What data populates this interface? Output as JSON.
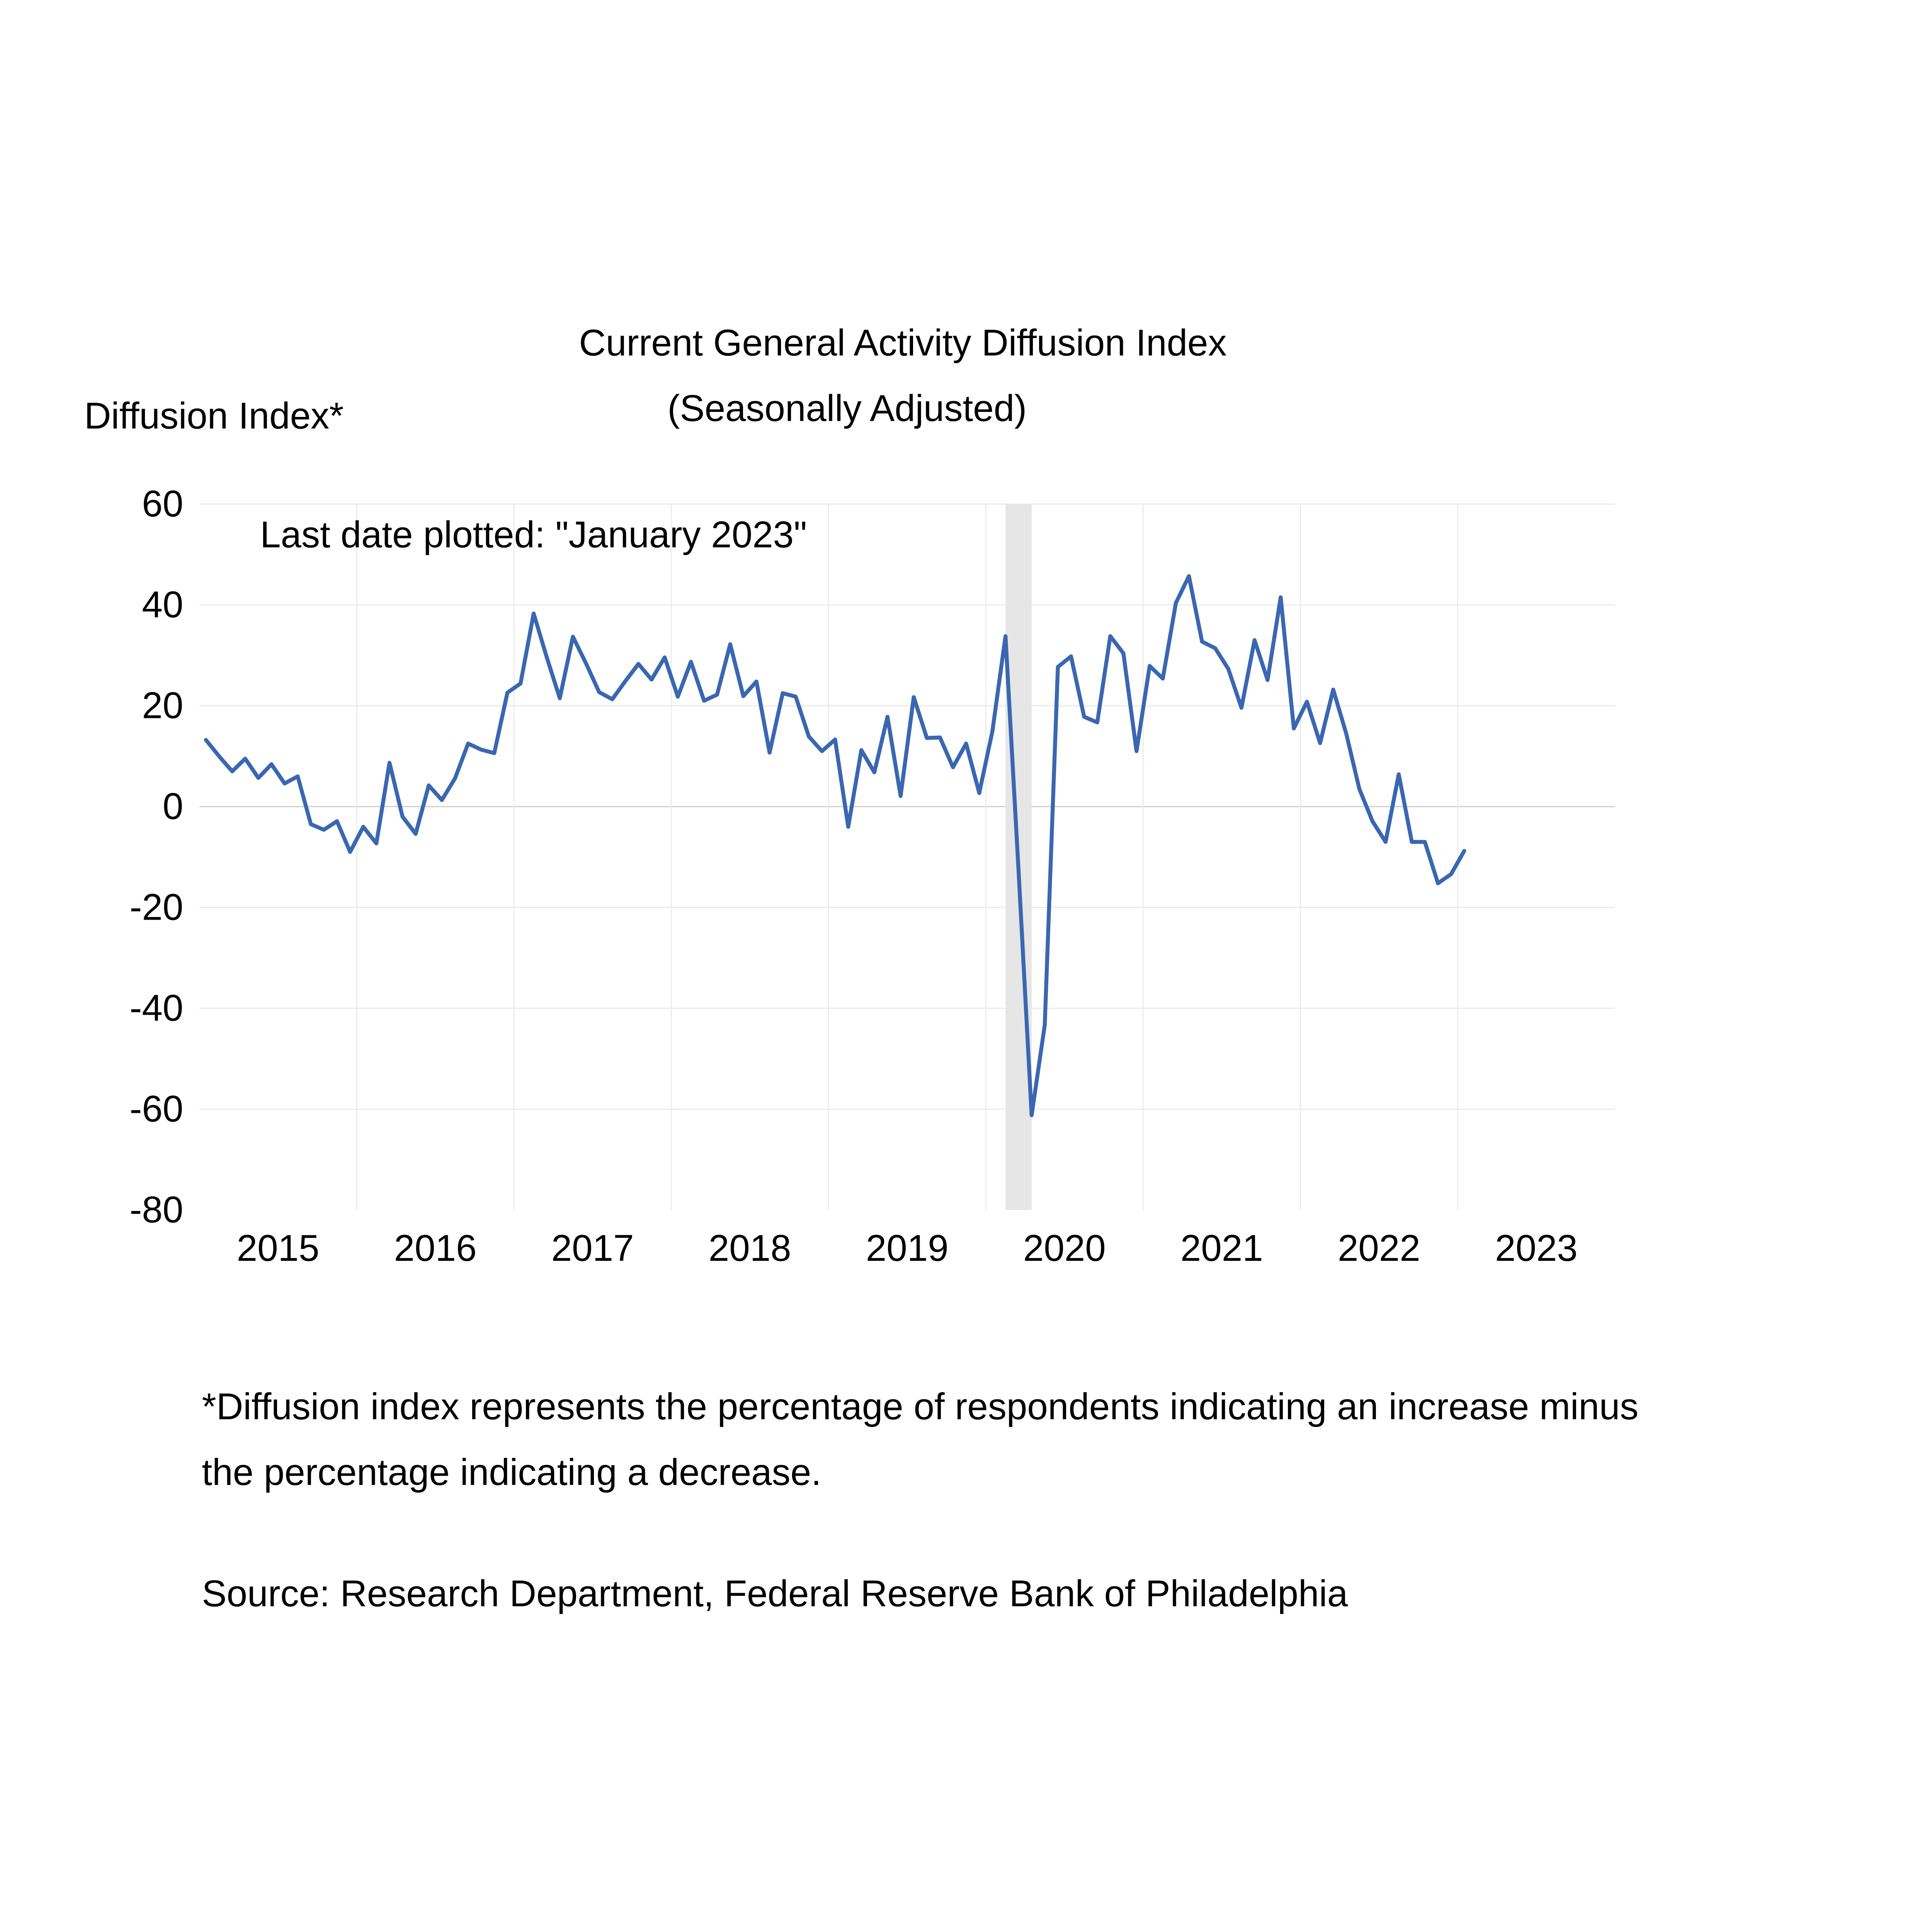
{
  "chart_data": {
    "type": "line",
    "title": "Current General Activity Diffusion Index",
    "subtitle": "(Seasonally Adjusted)",
    "ylabel": "Diffusion Index*",
    "xlabel": "",
    "annotation": "Last date plotted: \"January 2023\"",
    "ylim": [
      -80,
      60
    ],
    "yticks": [
      "60",
      "40",
      "20",
      "0",
      "-20",
      "-40",
      "-60",
      "-80"
    ],
    "ytick_values": [
      60,
      40,
      20,
      0,
      -20,
      -40,
      -60,
      -80
    ],
    "xtick_labels": [
      "2015",
      "2016",
      "2017",
      "2018",
      "2019",
      "2020",
      "2021",
      "2022",
      "2023"
    ],
    "x_start": "January 2015",
    "x_end": "January 2023",
    "x_frequency": "monthly",
    "grid": true,
    "recession_shading": {
      "from_month_index": 61,
      "to_month_index": 63,
      "color": "#e6e6e6"
    },
    "series": [
      {
        "name": "Current General Activity Diffusion Index",
        "color": "#3a67b0",
        "values": [
          13.2,
          10.0,
          7.0,
          9.5,
          5.7,
          8.4,
          4.6,
          6.0,
          -3.5,
          -4.6,
          -2.9,
          -9.0,
          -4.0,
          -7.3,
          8.7,
          -2.0,
          -5.4,
          4.2,
          1.3,
          5.6,
          12.5,
          11.3,
          10.6,
          22.6,
          24.4,
          38.3,
          29.6,
          21.5,
          33.7,
          28.4,
          22.7,
          21.3,
          24.9,
          28.3,
          25.2,
          29.6,
          21.8,
          28.7,
          21.0,
          22.2,
          32.2,
          21.9,
          24.8,
          10.7,
          22.5,
          21.8,
          13.9,
          11.0,
          13.3,
          -4.0,
          11.2,
          6.8,
          17.8,
          2.1,
          21.7,
          13.6,
          13.7,
          7.8,
          12.5,
          2.7,
          14.9,
          33.8,
          -13.0,
          -61.2,
          -43.3,
          27.7,
          29.8,
          17.8,
          16.7,
          33.8,
          30.4,
          11.0,
          27.9,
          25.4,
          40.4,
          45.7,
          32.7,
          31.4,
          27.3,
          19.6,
          33.0,
          25.1,
          41.5,
          15.5,
          20.8,
          12.6,
          23.2,
          14.5,
          3.5,
          -2.9,
          -7.0,
          6.4,
          -7.0,
          -7.0,
          -15.2,
          -13.4,
          -8.8
        ]
      }
    ]
  },
  "footnote": {
    "line1": "*Diffusion index represents the percentage of respondents indicating an increase minus",
    "line2": "the percentage indicating a decrease.",
    "source": "Source: Research Department, Federal Reserve Bank of Philadelphia"
  }
}
